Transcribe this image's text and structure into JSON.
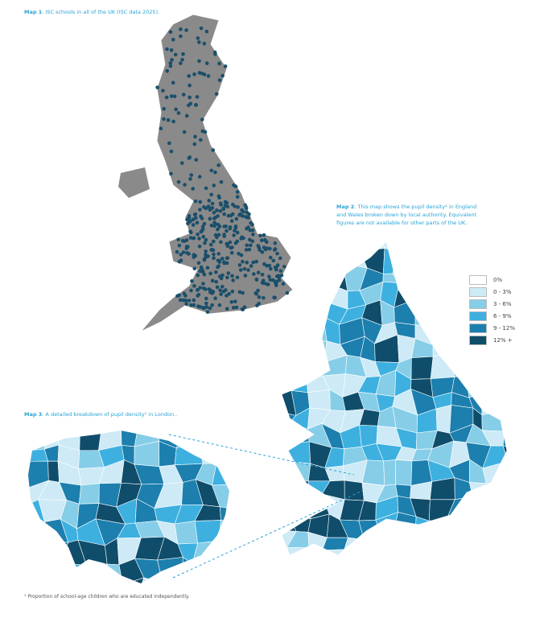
{
  "map1": {
    "label": "Map 1",
    "text": ". ISC schools in all of the UK (ISC data 2025)."
  },
  "map2": {
    "label": "Map 2",
    "text": ". This map shows the pupil density¹ in England and Wales broken down by local authority. Equivalent figures are not available for other parts of the UK."
  },
  "legend": [
    {
      "label": "0%",
      "color": "#ffffff"
    },
    {
      "label": "0 - 3%",
      "color": "#cdeaf6"
    },
    {
      "label": "3 - 6%",
      "color": "#86cde8"
    },
    {
      "label": "6 - 9%",
      "color": "#3db0e0"
    },
    {
      "label": "9 - 12%",
      "color": "#1c7fae"
    },
    {
      "label": "12% +",
      "color": "#0f4d6b"
    }
  ],
  "map3": {
    "label": "Map 3",
    "text": ". A detailed breakdown of pupil density¹ in London.."
  },
  "footnote": "¹ Proportion of school-age children who are educated independently."
}
